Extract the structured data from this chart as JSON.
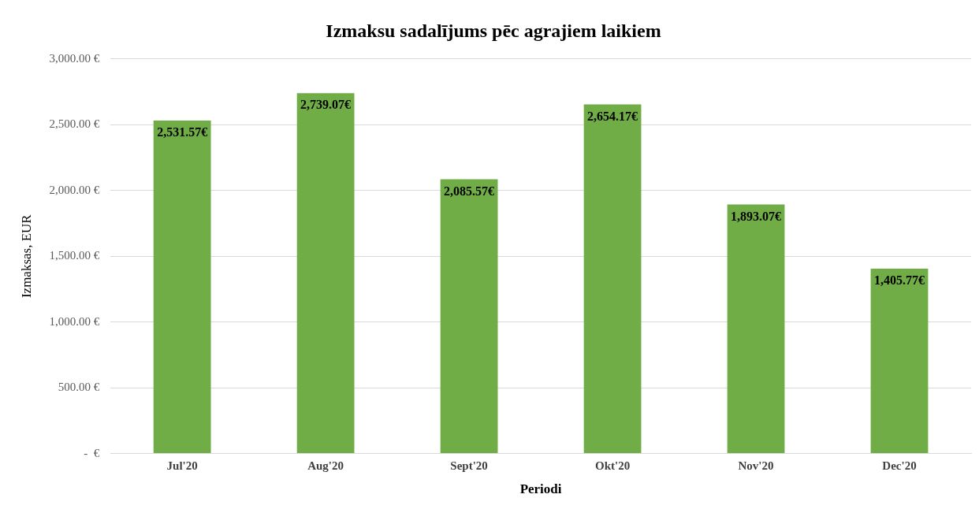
{
  "chart_data": {
    "type": "bar",
    "title": "Izmaksu sadalījums pēc agrajiem laikiem",
    "xlabel": "Periodi",
    "ylabel": "Izmaksas, EUR",
    "categories": [
      "Jul'20",
      "Aug'20",
      "Sept'20",
      "Okt'20",
      "Nov'20",
      "Dec'20"
    ],
    "values": [
      2531.57,
      2739.07,
      2085.57,
      2654.17,
      1893.07,
      1405.77
    ],
    "value_labels": [
      "2,531.57€",
      "2,739.07€",
      "2,085.57€",
      "2,654.17€",
      "1,893.07€",
      "1,405.77€"
    ],
    "color": "#70ad47",
    "ylim": [
      0,
      3000
    ],
    "yticks": [
      {
        "value": 0,
        "label": "-  €"
      },
      {
        "value": 500,
        "label": "500.00 €"
      },
      {
        "value": 1000,
        "label": "1,000.00 €"
      },
      {
        "value": 1500,
        "label": "1,500.00 €"
      },
      {
        "value": 2000,
        "label": "2,000.00 €"
      },
      {
        "value": 2500,
        "label": "2,500.00 €"
      },
      {
        "value": 3000,
        "label": "3,000.00 €"
      }
    ],
    "grid": "y",
    "legend": false
  }
}
